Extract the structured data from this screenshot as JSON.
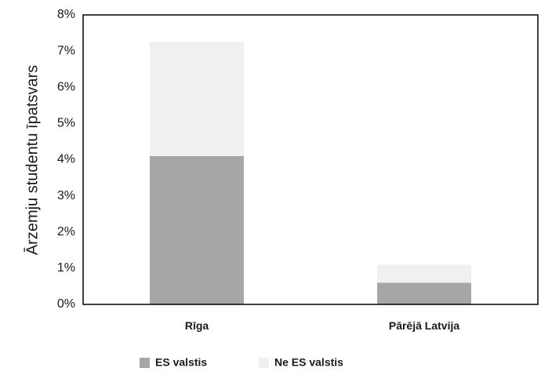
{
  "chart_data": {
    "type": "bar",
    "stacked": true,
    "categories": [
      "Rīga",
      "Pārējā Latvija"
    ],
    "series": [
      {
        "name": "ES valstis",
        "values": [
          4.1,
          0.6
        ],
        "color": "#a6a6a6"
      },
      {
        "name": "Ne ES valstis",
        "values": [
          3.15,
          0.5
        ],
        "color": "#f0f0f0"
      }
    ],
    "ylabel": "Ārzemju studentu īpatsvars",
    "xlabel": "",
    "title": "",
    "ylim": [
      0,
      8
    ],
    "yticks": [
      "0%",
      "1%",
      "2%",
      "3%",
      "4%",
      "5%",
      "6%",
      "7%",
      "8%"
    ],
    "grid": false,
    "legend_position": "bottom"
  }
}
